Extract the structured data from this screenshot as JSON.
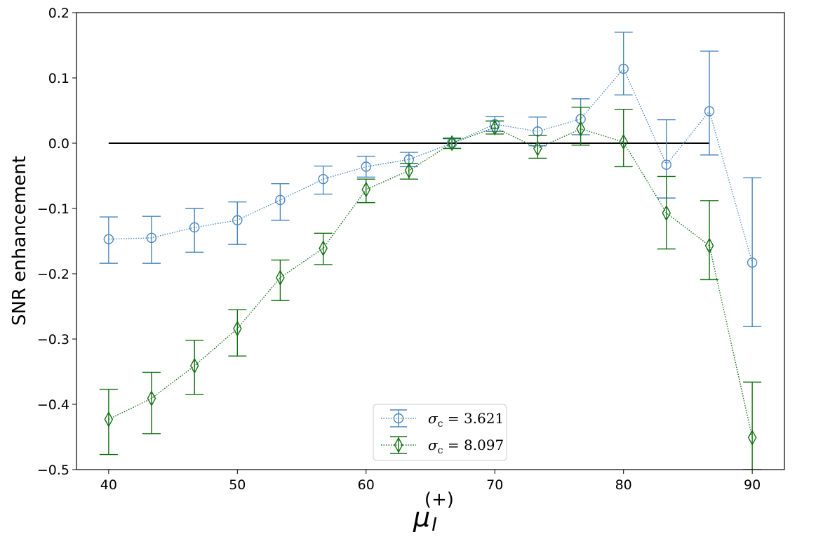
{
  "chart_data": {
    "type": "errorbar-line",
    "title": "",
    "xlabel": "μ",
    "xlabel_sub": "I",
    "xlabel_sup": "(+)",
    "ylabel": "SNR enhancement",
    "xlim": [
      37.5,
      92.5
    ],
    "ylim": [
      -0.5,
      0.2
    ],
    "xticks": [
      40,
      50,
      60,
      70,
      80,
      90
    ],
    "xtick_labels": [
      "40",
      "50",
      "60",
      "70",
      "80",
      "90"
    ],
    "yticks": [
      -0.5,
      -0.4,
      -0.3,
      -0.2,
      -0.1,
      0.0,
      0.1,
      0.2
    ],
    "ytick_labels": [
      "−0.5",
      "−0.4",
      "−0.3",
      "−0.2",
      "−0.1",
      "0.0",
      "0.1",
      "0.2"
    ],
    "reference_line": {
      "y": 0.0,
      "x_start": 40,
      "x_end": 86.67,
      "color": "#000000"
    },
    "legend": {
      "placement": "bottom-center"
    },
    "series": [
      {
        "name": "σc = 3.621",
        "label_symbol": "σ",
        "label_sub": "c",
        "label_rest": " = 3.621",
        "color": "#4a86c0",
        "marker": "circle",
        "linestyle": "dotted",
        "x": [
          40,
          43.33,
          46.67,
          50,
          53.33,
          56.67,
          60,
          63.33,
          66.67,
          70,
          73.33,
          76.67,
          80,
          83.33,
          86.67,
          90
        ],
        "values": [
          -0.147,
          -0.145,
          -0.129,
          -0.118,
          -0.087,
          -0.055,
          -0.036,
          -0.025,
          0.0,
          0.029,
          0.018,
          0.037,
          0.114,
          -0.033,
          0.049,
          -0.183
        ],
        "err_low": [
          -0.184,
          -0.184,
          -0.167,
          -0.155,
          -0.118,
          -0.078,
          -0.052,
          -0.036,
          -0.008,
          0.018,
          -0.004,
          0.013,
          0.074,
          -0.084,
          -0.018,
          -0.281
        ],
        "err_high": [
          -0.113,
          -0.112,
          -0.1,
          -0.09,
          -0.062,
          -0.035,
          -0.02,
          -0.014,
          0.008,
          0.041,
          0.04,
          0.068,
          0.17,
          0.036,
          0.141,
          -0.053
        ]
      },
      {
        "name": "σc = 8.097",
        "label_symbol": "σ",
        "label_sub": "c",
        "label_rest": " = 8.097",
        "color": "#157015",
        "marker": "diamond",
        "linestyle": "dotted",
        "x": [
          40,
          43.33,
          46.67,
          50,
          53.33,
          56.67,
          60,
          63.33,
          66.67,
          70,
          73.33,
          76.67,
          80,
          83.33,
          86.67,
          90
        ],
        "values": [
          -0.423,
          -0.391,
          -0.341,
          -0.284,
          -0.206,
          -0.161,
          -0.071,
          -0.042,
          0.0,
          0.024,
          -0.008,
          0.022,
          0.002,
          -0.107,
          -0.157,
          -0.451
        ],
        "err_low": [
          -0.477,
          -0.445,
          -0.385,
          -0.326,
          -0.241,
          -0.186,
          -0.091,
          -0.055,
          -0.008,
          0.014,
          -0.023,
          -0.003,
          -0.036,
          -0.162,
          -0.209,
          -0.5
        ],
        "err_high": [
          -0.377,
          -0.351,
          -0.302,
          -0.255,
          -0.179,
          -0.138,
          -0.055,
          -0.031,
          0.007,
          0.034,
          0.012,
          0.055,
          0.052,
          -0.051,
          -0.088,
          -0.366
        ]
      }
    ]
  }
}
